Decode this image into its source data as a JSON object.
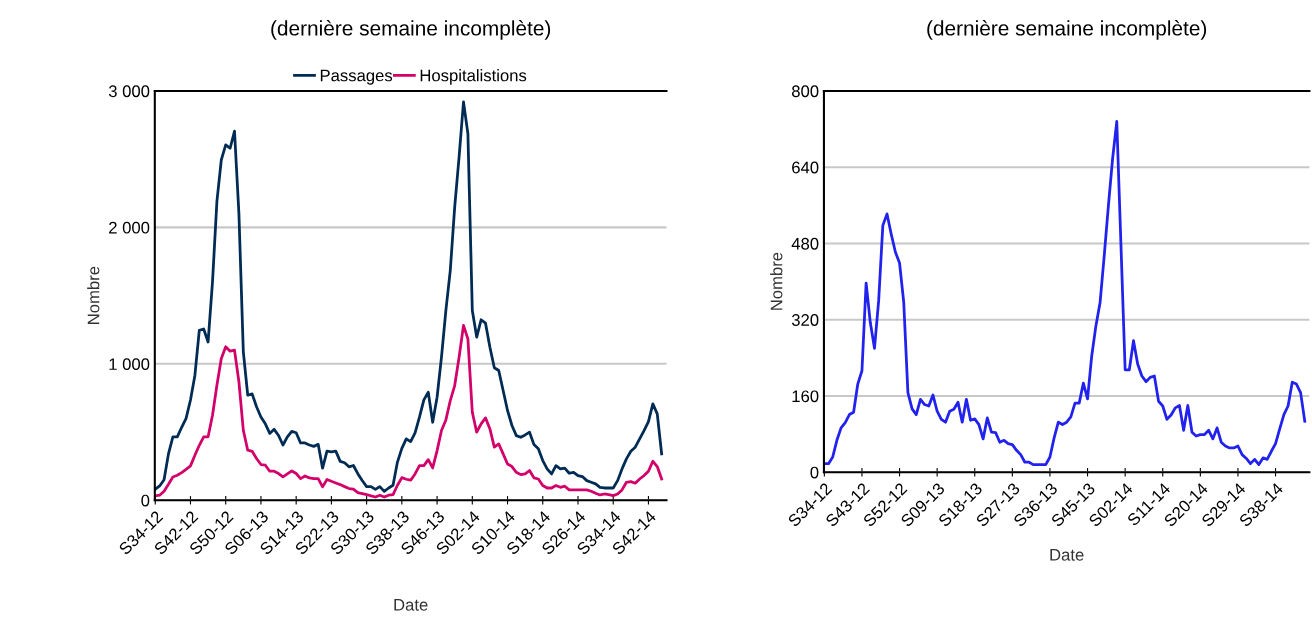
{
  "chart_data": [
    {
      "type": "line",
      "title": "(dernière semaine incomplète)",
      "xlabel": "Date",
      "ylabel": "Nombre",
      "legend": "top",
      "grid": "y",
      "categories": [
        "S34-12",
        null,
        null,
        null,
        null,
        null,
        null,
        null,
        "S42-12",
        null,
        null,
        null,
        null,
        null,
        null,
        null,
        "S50-12",
        null,
        null,
        null,
        null,
        null,
        null,
        null,
        "S06-13",
        null,
        null,
        null,
        null,
        null,
        null,
        null,
        "S14-13",
        null,
        null,
        null,
        null,
        null,
        null,
        null,
        "S22-13",
        null,
        null,
        null,
        null,
        null,
        null,
        null,
        "S30-13",
        null,
        null,
        null,
        null,
        null,
        null,
        null,
        "S38-13",
        null,
        null,
        null,
        null,
        null,
        null,
        null,
        "S46-13",
        null,
        null,
        null,
        null,
        null,
        null,
        null,
        "S02-14",
        null,
        null,
        null,
        null,
        null,
        null,
        null,
        "S10-14",
        null,
        null,
        null,
        null,
        null,
        null,
        null,
        "S18-14",
        null,
        null,
        null,
        null,
        null,
        null,
        null,
        "S26-14",
        null,
        null,
        null,
        null,
        null,
        null,
        null,
        "S34-14",
        null,
        null,
        null,
        null,
        null,
        null,
        null,
        "S42-14",
        null,
        null,
        null
      ],
      "ylim": [
        0,
        3000
      ],
      "yticks": [
        0,
        {
          "value": 1000,
          "label": "1 000"
        },
        {
          "value": 2000,
          "label": "2 000"
        },
        {
          "value": 3000,
          "label": "3 000"
        }
      ],
      "series": [
        {
          "name": "Passages",
          "color": "#002b55",
          "values": [
            81,
            105,
            150,
            340,
            465,
            465,
            535,
            600,
            735,
            915,
            1245,
            1255,
            1160,
            1600,
            2190,
            2495,
            2605,
            2580,
            2705,
            2100,
            1088,
            770,
            780,
            685,
            610,
            560,
            490,
            520,
            475,
            405,
            465,
            505,
            495,
            420,
            420,
            405,
            395,
            410,
            235,
            360,
            355,
            360,
            285,
            275,
            245,
            255,
            195,
            145,
            100,
            100,
            80,
            100,
            65,
            90,
            110,
            280,
            380,
            450,
            430,
            494,
            609,
            736,
            792,
            572,
            755,
            1049,
            1391,
            1685,
            2149,
            2516,
            2919,
            2687,
            1391,
            1196,
            1323,
            1298,
            1122,
            971,
            951,
            804,
            658,
            548,
            474,
            462,
            479,
            499,
            408,
            377,
            291,
            230,
            193,
            254,
            230,
            235,
            198,
            205,
            181,
            174,
            144,
            132,
            120,
            95,
            90,
            90,
            90,
            144,
            230,
            303,
            359,
            389,
            450,
            511,
            577,
            707,
            633,
            340
          ]
        },
        {
          "name": "Hospitalistions",
          "color": "#d4006a",
          "values": [
            32,
            37,
            66,
            117,
            171,
            183,
            203,
            227,
            252,
            330,
            403,
            465,
            465,
            623,
            843,
            1039,
            1125,
            1093,
            1100,
            868,
            513,
            367,
            359,
            306,
            262,
            257,
            213,
            213,
            196,
            171,
            193,
            215,
            196,
            159,
            178,
            164,
            159,
            159,
            98,
            152,
            139,
            127,
            115,
            100,
            86,
            81,
            56,
            49,
            42,
            32,
            24,
            37,
            24,
            37,
            42,
            110,
            166,
            154,
            147,
            193,
            254,
            254,
            298,
            237,
            364,
            511,
            589,
            731,
            841,
            1049,
            1281,
            1183,
            645,
            499,
            560,
            604,
            523,
            389,
            413,
            340,
            266,
            247,
            205,
            188,
            193,
            218,
            164,
            156,
            108,
            90,
            90,
            108,
            95,
            103,
            76,
            76,
            76,
            76,
            76,
            66,
            51,
            39,
            46,
            42,
            34,
            46,
            76,
            132,
            137,
            125,
            156,
            181,
            213,
            286,
            247,
            156
          ]
        }
      ]
    },
    {
      "type": "line",
      "title": "(dernière semaine incomplète)",
      "xlabel": "Date",
      "ylabel": "Nombre",
      "grid": "y",
      "categories": [
        "S34-12",
        null,
        null,
        null,
        null,
        null,
        null,
        null,
        null,
        "S43-12",
        null,
        null,
        null,
        null,
        null,
        null,
        null,
        null,
        "S52-12",
        null,
        null,
        null,
        null,
        null,
        null,
        null,
        null,
        "S09-13",
        null,
        null,
        null,
        null,
        null,
        null,
        null,
        null,
        "S18-13",
        null,
        null,
        null,
        null,
        null,
        null,
        null,
        null,
        "S27-13",
        null,
        null,
        null,
        null,
        null,
        null,
        null,
        null,
        "S36-13",
        null,
        null,
        null,
        null,
        null,
        null,
        null,
        null,
        "S45-13",
        null,
        null,
        null,
        null,
        null,
        null,
        null,
        null,
        "S02-14",
        null,
        null,
        null,
        null,
        null,
        null,
        null,
        null,
        "S11-14",
        null,
        null,
        null,
        null,
        null,
        null,
        null,
        null,
        "S20-14",
        null,
        null,
        null,
        null,
        null,
        null,
        null,
        null,
        "S29-14",
        null,
        null,
        null,
        null,
        null,
        null,
        null,
        null,
        "S38-14",
        null,
        null,
        null,
        null,
        null,
        null,
        null
      ],
      "ylim": [
        0,
        800
      ],
      "yticks": [
        0,
        160,
        320,
        480,
        640,
        800
      ],
      "series": [
        {
          "color": "#2222ee",
          "values": [
            18,
            18,
            32,
            67,
            93,
            104,
            121,
            126,
            185,
            213,
            397,
            314,
            260,
            360,
            518,
            542,
            500,
            462,
            439,
            357,
            167,
            133,
            121,
            153,
            142,
            139,
            162,
            128,
            111,
            105,
            128,
            132,
            147,
            105,
            153,
            109,
            112,
            100,
            70,
            114,
            84,
            83,
            63,
            67,
            60,
            58,
            46,
            37,
            21,
            21,
            16,
            16,
            16,
            16,
            32,
            72,
            105,
            100,
            105,
            116,
            145,
            145,
            187,
            154,
            244,
            307,
            356,
            455,
            560,
            658,
            736,
            476,
            215,
            215,
            276,
            227,
            202,
            190,
            199,
            202,
            149,
            139,
            111,
            120,
            135,
            140,
            88,
            140,
            84,
            76,
            79,
            79,
            88,
            70,
            93,
            63,
            55,
            51,
            51,
            55,
            37,
            29,
            18,
            27,
            16,
            30,
            27,
            44,
            60,
            91,
            121,
            139,
            189,
            185,
            167,
            107
          ]
        }
      ]
    }
  ]
}
